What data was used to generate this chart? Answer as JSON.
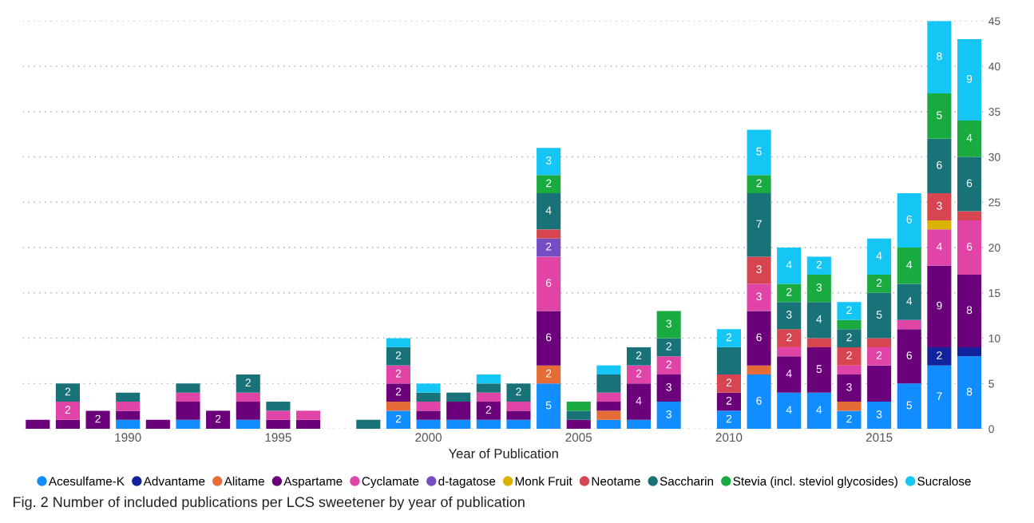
{
  "chart_data": {
    "type": "bar",
    "stacked": true,
    "xlabel": "Year of Publication",
    "annotations": [
      "Fig. 2 Number of included publications per LCS sweetener by year of publication"
    ],
    "x": [
      1987,
      1988,
      1989,
      1990,
      1991,
      1992,
      1993,
      1994,
      1995,
      1996,
      1998,
      1999,
      2000,
      2001,
      2002,
      2003,
      2004,
      2005,
      2006,
      2007,
      2008,
      2010,
      2011,
      2012,
      2013,
      2014,
      2015,
      2016,
      2017,
      2018
    ],
    "xlim": [
      1986.5,
      2018.5
    ],
    "xticks": [
      1990,
      1995,
      2000,
      2005,
      2010,
      2015
    ],
    "ylim": [
      0,
      45
    ],
    "yticks": [
      0,
      5,
      10,
      15,
      20,
      25,
      30,
      35,
      40,
      45
    ],
    "grid": "y",
    "legend": "bottom",
    "series": [
      {
        "name": "Acesulfame-K",
        "color": "#118dff",
        "values": [
          null,
          null,
          null,
          1,
          null,
          1,
          null,
          1,
          null,
          null,
          null,
          2,
          1,
          1,
          1,
          1,
          5,
          null,
          1,
          1,
          3,
          2,
          6,
          4,
          4,
          2,
          3,
          5,
          7,
          8
        ],
        "value_labels": [
          null,
          null,
          null,
          null,
          null,
          null,
          null,
          null,
          null,
          null,
          null,
          "2",
          null,
          null,
          null,
          null,
          "5",
          null,
          null,
          null,
          "3",
          "2",
          "6",
          "4",
          "4",
          "2",
          "3",
          "5",
          "7",
          "8"
        ]
      },
      {
        "name": "Advantame",
        "color": "#12239e",
        "values": [
          null,
          null,
          null,
          null,
          null,
          null,
          null,
          null,
          null,
          null,
          null,
          null,
          null,
          null,
          null,
          null,
          null,
          null,
          null,
          null,
          null,
          null,
          null,
          null,
          null,
          null,
          null,
          null,
          2,
          1
        ],
        "value_labels": [
          null,
          null,
          null,
          null,
          null,
          null,
          null,
          null,
          null,
          null,
          null,
          null,
          null,
          null,
          null,
          null,
          null,
          null,
          null,
          null,
          null,
          null,
          null,
          null,
          null,
          null,
          null,
          null,
          "2",
          null
        ]
      },
      {
        "name": "Alitame",
        "color": "#e66c37",
        "values": [
          null,
          null,
          null,
          null,
          null,
          null,
          null,
          null,
          null,
          null,
          null,
          1,
          null,
          null,
          null,
          null,
          2,
          null,
          1,
          null,
          null,
          null,
          1,
          null,
          null,
          1,
          null,
          null,
          null,
          null
        ],
        "value_labels": [
          null,
          null,
          null,
          null,
          null,
          null,
          null,
          null,
          null,
          null,
          null,
          null,
          null,
          null,
          null,
          null,
          "2",
          null,
          null,
          null,
          null,
          null,
          null,
          null,
          null,
          null,
          null,
          null,
          null,
          null
        ]
      },
      {
        "name": "Aspartame",
        "color": "#6b007b",
        "values": [
          1,
          1,
          2,
          1,
          1,
          2,
          2,
          2,
          1,
          1,
          null,
          2,
          1,
          2,
          2,
          1,
          6,
          1,
          1,
          4,
          3,
          2,
          6,
          4,
          5,
          3,
          4,
          6,
          9,
          8
        ],
        "value_labels": [
          null,
          null,
          "2",
          null,
          null,
          null,
          "2",
          null,
          null,
          null,
          null,
          "2",
          null,
          null,
          "2",
          null,
          "6",
          null,
          null,
          "4",
          "3",
          "2",
          "6",
          "4",
          "5",
          "3",
          null,
          "6",
          "9",
          "8"
        ]
      },
      {
        "name": "Cyclamate",
        "color": "#e044a7",
        "values": [
          null,
          2,
          null,
          1,
          null,
          1,
          null,
          1,
          1,
          1,
          null,
          2,
          1,
          null,
          1,
          1,
          6,
          null,
          1,
          2,
          2,
          null,
          3,
          1,
          null,
          1,
          2,
          1,
          4,
          6
        ],
        "value_labels": [
          null,
          "2",
          null,
          null,
          null,
          null,
          null,
          null,
          null,
          null,
          null,
          "2",
          null,
          null,
          null,
          null,
          "6",
          null,
          null,
          "2",
          "2",
          null,
          "3",
          null,
          null,
          null,
          "2",
          null,
          "4",
          "6"
        ]
      },
      {
        "name": "d-tagatose",
        "color": "#744ec2",
        "values": [
          null,
          null,
          null,
          null,
          null,
          null,
          null,
          null,
          null,
          null,
          null,
          null,
          null,
          null,
          null,
          null,
          2,
          null,
          null,
          null,
          null,
          null,
          null,
          null,
          null,
          null,
          null,
          null,
          null,
          null
        ],
        "value_labels": [
          null,
          null,
          null,
          null,
          null,
          null,
          null,
          null,
          null,
          null,
          null,
          null,
          null,
          null,
          null,
          null,
          "2",
          null,
          null,
          null,
          null,
          null,
          null,
          null,
          null,
          null,
          null,
          null,
          null,
          null
        ]
      },
      {
        "name": "Monk Fruit",
        "color": "#d9b300",
        "values": [
          null,
          null,
          null,
          null,
          null,
          null,
          null,
          null,
          null,
          null,
          null,
          null,
          null,
          null,
          null,
          null,
          null,
          null,
          null,
          null,
          null,
          null,
          null,
          null,
          null,
          null,
          null,
          null,
          1,
          null
        ]
      },
      {
        "name": "Neotame",
        "color": "#d64550",
        "values": [
          null,
          null,
          null,
          null,
          null,
          null,
          null,
          null,
          null,
          null,
          null,
          null,
          null,
          null,
          null,
          null,
          1,
          null,
          null,
          null,
          null,
          2,
          3,
          2,
          1,
          2,
          1,
          null,
          3,
          1
        ],
        "value_labels": [
          null,
          null,
          null,
          null,
          null,
          null,
          null,
          null,
          null,
          null,
          null,
          null,
          null,
          null,
          null,
          null,
          null,
          null,
          null,
          null,
          null,
          "2",
          "3",
          "2",
          null,
          "2",
          null,
          null,
          "3",
          null
        ]
      },
      {
        "name": "Saccharin",
        "color": "#197278",
        "values": [
          null,
          2,
          null,
          1,
          null,
          1,
          null,
          2,
          1,
          null,
          1,
          2,
          1,
          1,
          1,
          2,
          4,
          1,
          2,
          2,
          2,
          3,
          7,
          3,
          4,
          2,
          5,
          4,
          6,
          6
        ],
        "value_labels": [
          null,
          "2",
          null,
          null,
          null,
          null,
          null,
          "2",
          null,
          null,
          null,
          "2",
          null,
          null,
          null,
          "2",
          "4",
          null,
          null,
          "2",
          "2",
          null,
          "7",
          "3",
          "4",
          "2",
          "5",
          "4",
          "6",
          "6"
        ]
      },
      {
        "name": "Stevia (incl. steviol glycosides)",
        "color": "#1aab40",
        "values": [
          null,
          null,
          null,
          null,
          null,
          null,
          null,
          null,
          null,
          null,
          null,
          null,
          null,
          null,
          null,
          null,
          2,
          1,
          null,
          null,
          3,
          null,
          2,
          2,
          3,
          1,
          2,
          4,
          5,
          4
        ],
        "value_labels": [
          null,
          null,
          null,
          null,
          null,
          null,
          null,
          null,
          null,
          null,
          null,
          null,
          null,
          null,
          null,
          null,
          "2",
          null,
          null,
          null,
          "3",
          null,
          "2",
          "2",
          "3",
          null,
          "2",
          "4",
          "5",
          "4"
        ]
      },
      {
        "name": "Sucralose",
        "color": "#15c6f4",
        "values": [
          null,
          null,
          null,
          null,
          null,
          null,
          null,
          null,
          null,
          null,
          null,
          1,
          1,
          null,
          1,
          null,
          3,
          null,
          1,
          null,
          null,
          2,
          5,
          4,
          2,
          2,
          4,
          6,
          8,
          9
        ],
        "value_labels": [
          null,
          null,
          null,
          null,
          null,
          null,
          null,
          null,
          null,
          null,
          null,
          null,
          null,
          null,
          null,
          null,
          "3",
          null,
          null,
          null,
          null,
          "2",
          "5",
          "4",
          "2",
          "2",
          "4",
          "6",
          "8",
          "9"
        ]
      }
    ]
  }
}
